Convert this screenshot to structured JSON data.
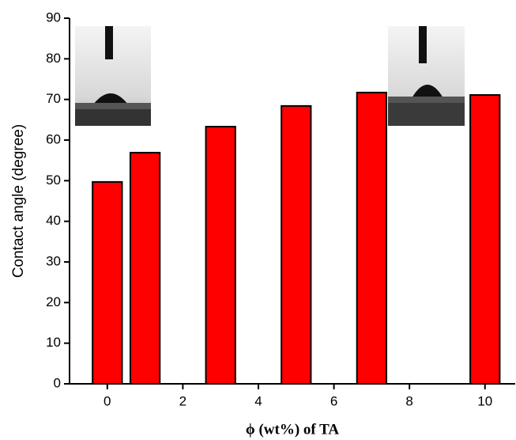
{
  "chart_data": {
    "type": "bar",
    "x": [
      0,
      1,
      3,
      5,
      7,
      10
    ],
    "values": [
      49.7,
      56.9,
      63.3,
      68.4,
      71.7,
      71.1
    ],
    "color": "#ff0000",
    "xlabel": "ϕ (wt%) of TA",
    "ylabel": "Contact angle (degree)",
    "xlim": [
      -1,
      10.8
    ],
    "ylim": [
      0,
      90
    ],
    "xticks": [
      0,
      2,
      4,
      6,
      8,
      10
    ],
    "yticks": [
      0,
      10,
      20,
      30,
      40,
      50,
      60,
      70,
      80,
      90
    ]
  }
}
